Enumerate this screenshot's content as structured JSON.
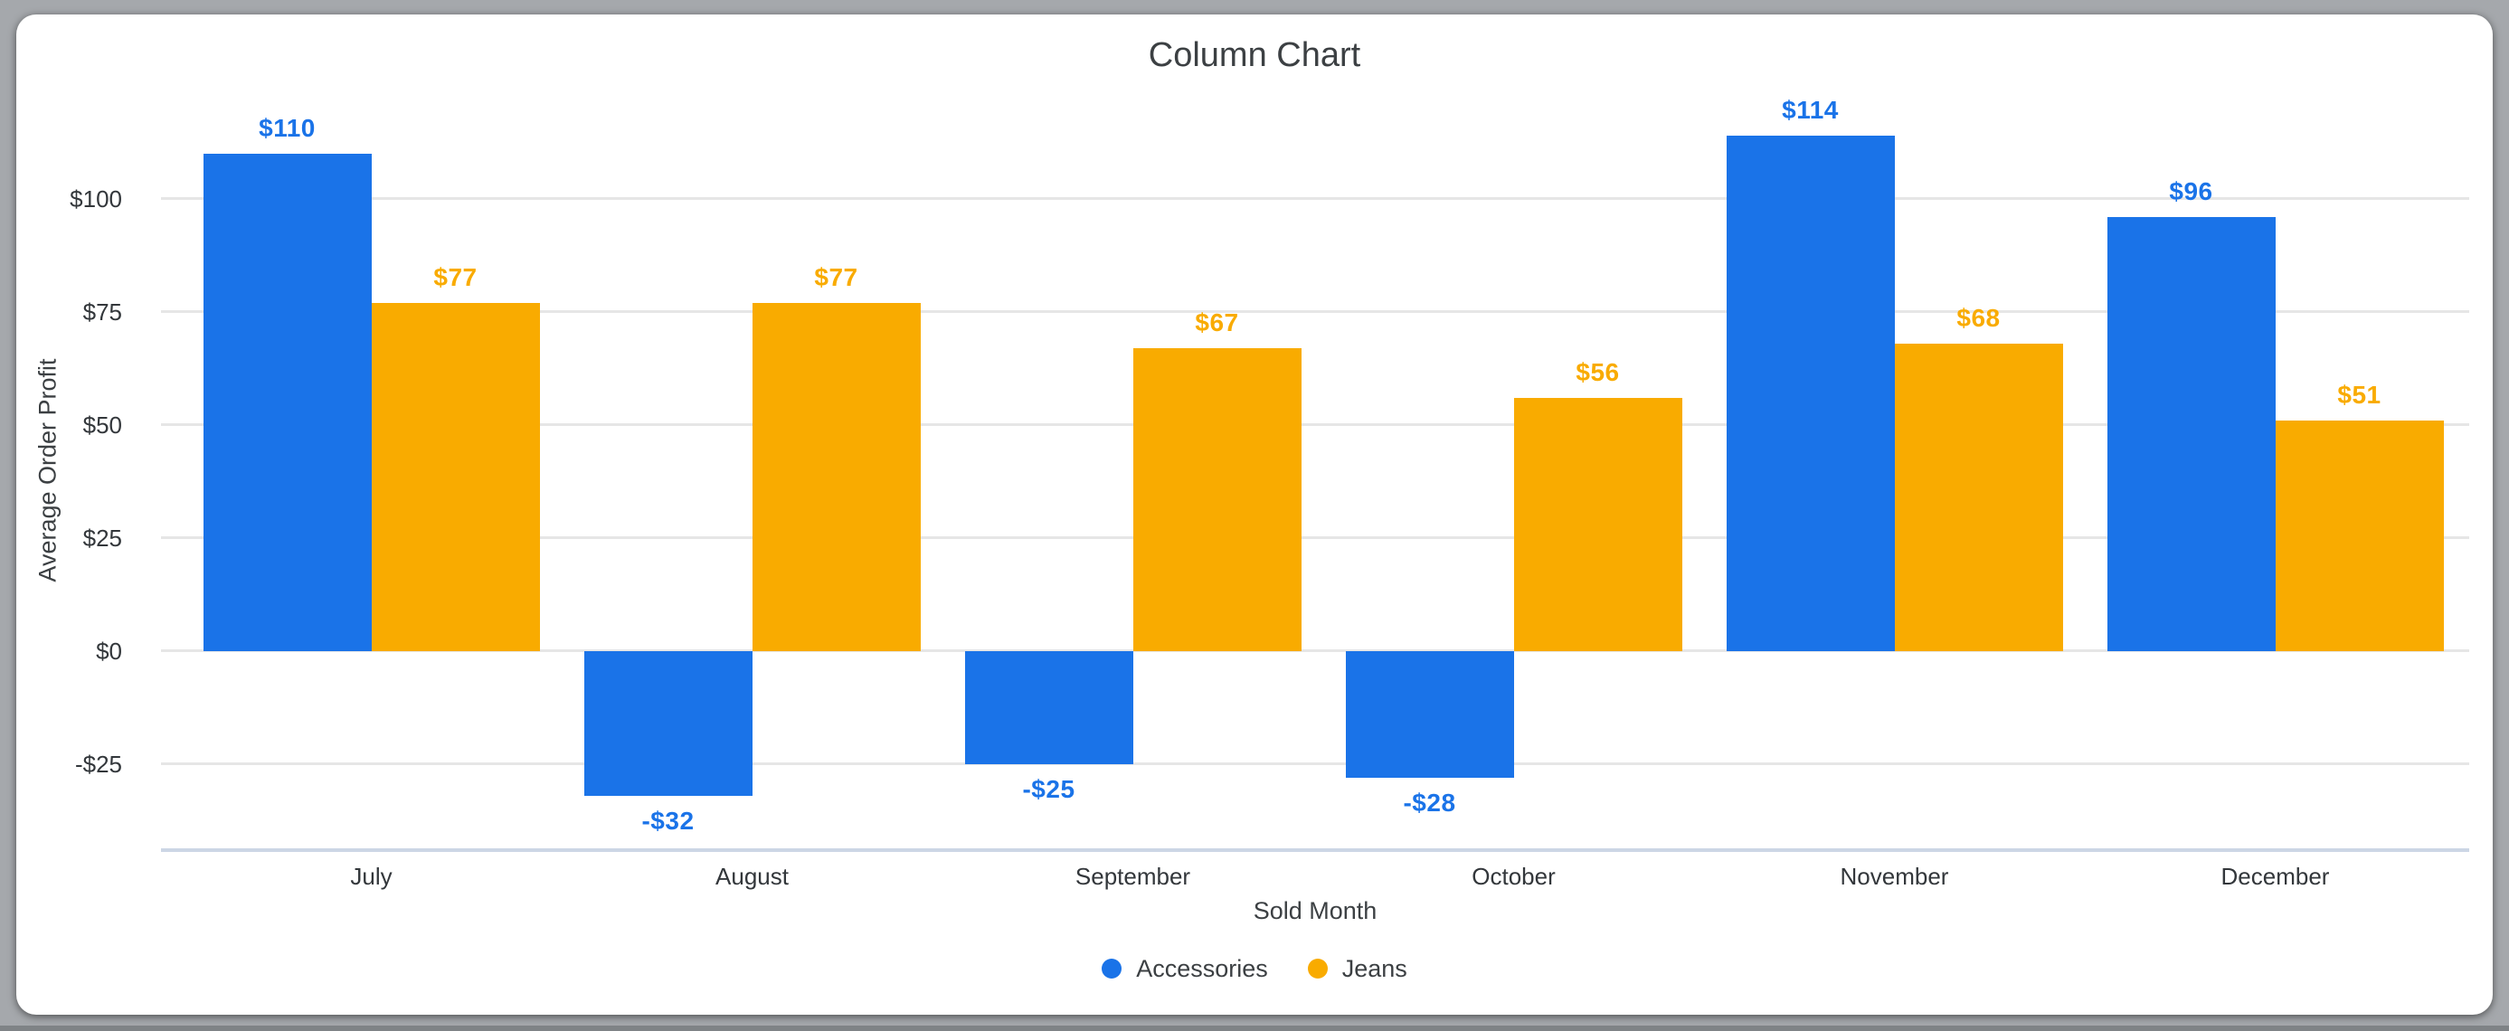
{
  "chart_data": {
    "type": "bar",
    "title": "Column Chart",
    "xlabel": "Sold Month",
    "ylabel": "Average Order Profit",
    "categories": [
      "July",
      "August",
      "September",
      "October",
      "November",
      "December"
    ],
    "series": [
      {
        "name": "Accessories",
        "color": "#1a73e8",
        "values": [
          110,
          -32,
          -25,
          -28,
          114,
          96
        ],
        "labels": [
          "$110",
          "-$32",
          "-$25",
          "-$28",
          "$114",
          "$96"
        ]
      },
      {
        "name": "Jeans",
        "color": "#f9ab00",
        "values": [
          77,
          77,
          67,
          56,
          68,
          51
        ],
        "labels": [
          "$77",
          "$77",
          "$67",
          "$56",
          "$68",
          "$51"
        ]
      }
    ],
    "y_ticks": [
      {
        "value": -25,
        "label": "-$25"
      },
      {
        "value": 0,
        "label": "$0"
      },
      {
        "value": 25,
        "label": "$25"
      },
      {
        "value": 50,
        "label": "$50"
      },
      {
        "value": 75,
        "label": "$75"
      },
      {
        "value": 100,
        "label": "$100"
      }
    ],
    "ylim": [
      -44,
      124
    ],
    "grid": true,
    "legend_position": "bottom"
  }
}
